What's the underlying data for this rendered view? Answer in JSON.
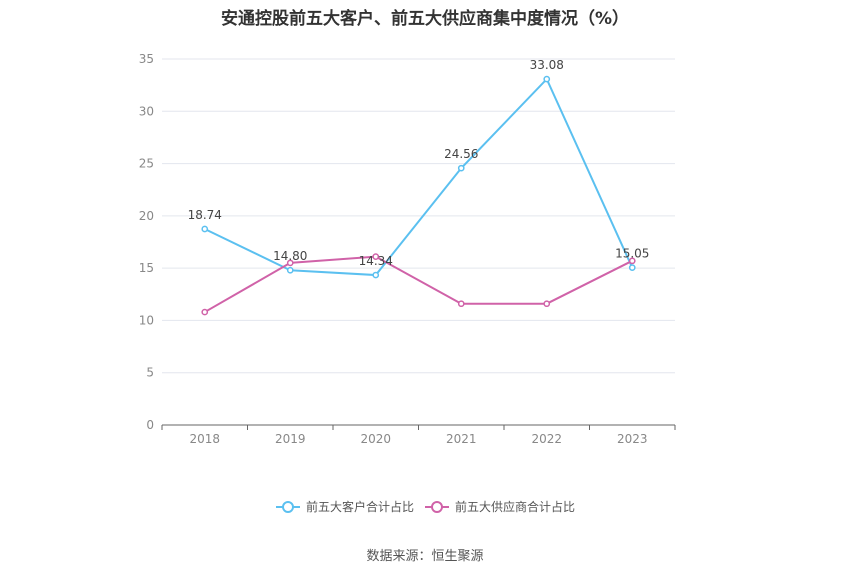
{
  "title": "安通控股前五大客户、前五大供应商集中度情况（%）",
  "source": "数据来源：恒生聚源",
  "colors": {
    "customers": "#5bc0f0",
    "suppliers": "#d062a8",
    "grid": "#e3e6ee",
    "axis": "#666666"
  },
  "chart_data": {
    "type": "line",
    "title": "安通控股前五大客户、前五大供应商集中度情况（%）",
    "categories": [
      "2018",
      "2019",
      "2020",
      "2021",
      "2022",
      "2023"
    ],
    "ylim": [
      0,
      35
    ],
    "yticks": [
      0,
      5,
      10,
      15,
      20,
      25,
      30,
      35
    ],
    "grid": true,
    "legend_position": "bottom",
    "series": [
      {
        "name": "前五大客户合计占比",
        "values": [
          18.74,
          14.8,
          14.34,
          24.56,
          33.08,
          15.05
        ],
        "labels": [
          "18.74",
          "14.80",
          "14.34",
          "24.56",
          "33.08",
          "15.05"
        ]
      },
      {
        "name": "前五大供应商合计占比",
        "values": [
          10.8,
          15.5,
          16.1,
          11.6,
          11.6,
          15.7
        ]
      }
    ]
  }
}
